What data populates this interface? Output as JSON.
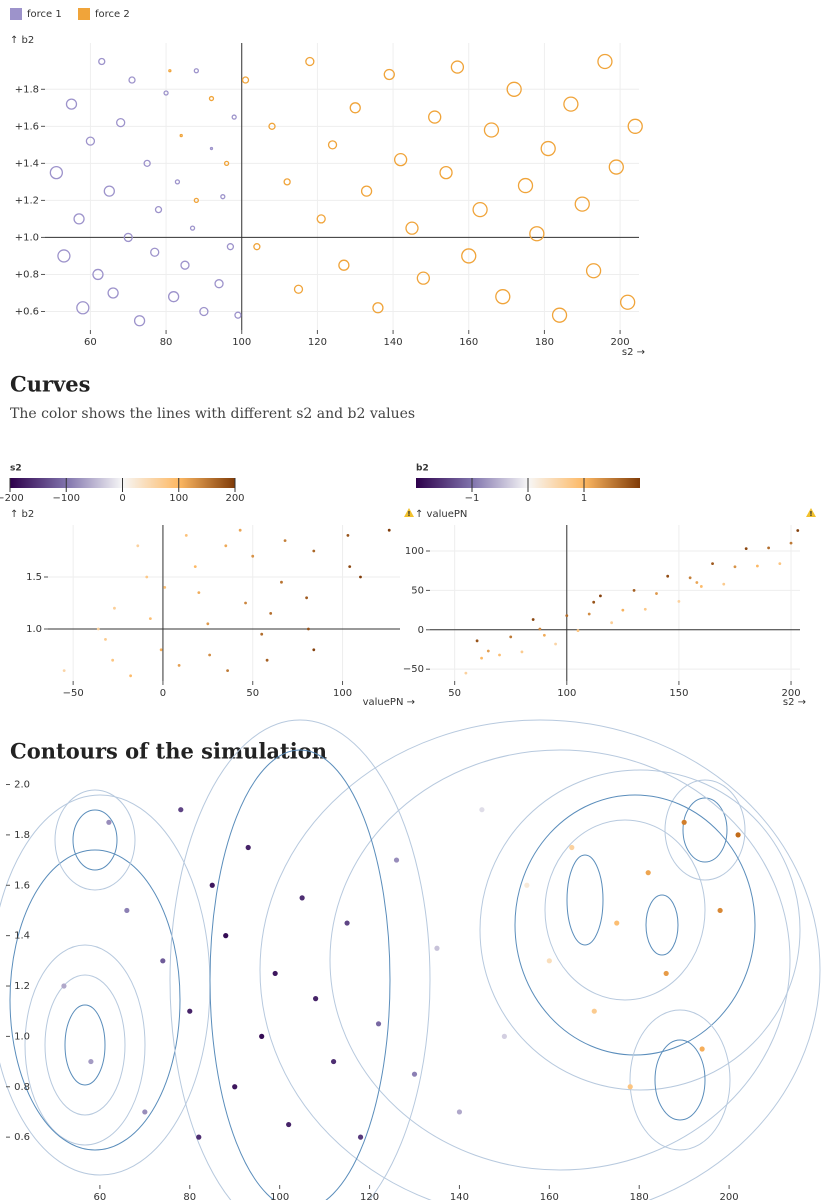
{
  "sections": [
    {
      "title": "Curves",
      "subtitle": "The color shows the lines with different s2 and b2 values"
    },
    {
      "title": "Contours of the simulation"
    }
  ],
  "chart_data": [
    {
      "type": "scatter",
      "x_label": "s2 →",
      "y_label": "↑ b2",
      "hollow": true,
      "grid": true,
      "xlim": [
        48,
        205
      ],
      "ylim": [
        0.5,
        2.05
      ],
      "xticks": [
        60,
        80,
        100,
        120,
        140,
        160,
        180,
        200
      ],
      "yticks": [
        {
          "value": 0.6,
          "label": "+0.6"
        },
        {
          "value": 0.8,
          "label": "+0.8"
        },
        {
          "value": 1,
          "label": "+1.0"
        },
        {
          "value": 1.2,
          "label": "+1.2"
        },
        {
          "value": 1.4,
          "label": "+1.4"
        },
        {
          "value": 1.6,
          "label": "+1.6"
        },
        {
          "value": 1.8,
          "label": "+1.8"
        }
      ],
      "rules": {
        "x": 100,
        "y": 1
      },
      "series": [
        {
          "name": "force 1",
          "color": "#9d93cb",
          "x": [
            51,
            53,
            55,
            57,
            58,
            60,
            62,
            63,
            65,
            66,
            68,
            70,
            71,
            73,
            75,
            77,
            78,
            80,
            82,
            83,
            85,
            87,
            88,
            90,
            92,
            94,
            95,
            97,
            98,
            99
          ],
          "values": [
            1.35,
            0.9,
            1.72,
            1.1,
            0.62,
            1.52,
            0.8,
            1.95,
            1.25,
            0.7,
            1.62,
            1.0,
            1.85,
            0.55,
            1.4,
            0.92,
            1.15,
            1.78,
            0.68,
            1.3,
            0.85,
            1.05,
            1.9,
            0.6,
            1.48,
            0.75,
            1.22,
            0.95,
            1.65,
            0.58
          ],
          "sizes": [
            6,
            6,
            5,
            5,
            6,
            4,
            5,
            3,
            5,
            5,
            4,
            4,
            3,
            5,
            3,
            4,
            3,
            2,
            5,
            2,
            4,
            2,
            2,
            4,
            1,
            4,
            2,
            3,
            2,
            3
          ]
        },
        {
          "name": "force 2",
          "color": "#f0a43a",
          "x": [
            81,
            84,
            88,
            92,
            96,
            101,
            104,
            108,
            112,
            115,
            118,
            121,
            124,
            127,
            130,
            133,
            136,
            139,
            142,
            145,
            148,
            151,
            154,
            157,
            160,
            163,
            166,
            169,
            172,
            175,
            178,
            181,
            184,
            187,
            190,
            193,
            196,
            199,
            202,
            204
          ],
          "values": [
            1.9,
            1.55,
            1.2,
            1.75,
            1.4,
            1.85,
            0.95,
            1.6,
            1.3,
            0.72,
            1.95,
            1.1,
            1.5,
            0.85,
            1.7,
            1.25,
            0.62,
            1.88,
            1.42,
            1.05,
            0.78,
            1.65,
            1.35,
            1.92,
            0.9,
            1.15,
            1.58,
            0.68,
            1.8,
            1.28,
            1.02,
            1.48,
            0.58,
            1.72,
            1.18,
            0.82,
            1.95,
            1.38,
            0.65,
            1.6
          ],
          "sizes": [
            1,
            1,
            2,
            2,
            2,
            3,
            3,
            3,
            3,
            4,
            4,
            4,
            4,
            5,
            5,
            5,
            5,
            5,
            6,
            6,
            6,
            6,
            6,
            6,
            7,
            7,
            7,
            7,
            7,
            7,
            7,
            7,
            7,
            7,
            7,
            7,
            7,
            7,
            7,
            7
          ]
        }
      ]
    },
    {
      "type": "scatter",
      "x_label": "valuePN →",
      "y_label": "↑ b2",
      "grid": true,
      "xlim": [
        -64,
        132
      ],
      "ylim": [
        0.5,
        2.0
      ],
      "xticks": [
        {
          "value": -50,
          "label": "−50"
        },
        0,
        50,
        100
      ],
      "yticks": [
        {
          "value": 1,
          "label": "1.0"
        },
        1.5
      ],
      "rules": {
        "x": 0,
        "y": 1
      },
      "color_scale": {
        "title": "s2",
        "domain": [
          -200,
          200
        ],
        "colors": [
          "#2d004b",
          "#8073ac",
          "#f7f7f7",
          "#fdb863",
          "#7f3b08"
        ],
        "ticks": [
          {
            "value": -200,
            "label": "−200"
          },
          {
            "value": -100,
            "label": "−100"
          },
          0,
          100,
          200
        ]
      },
      "x": [
        -55,
        -14,
        -27,
        -32,
        -9,
        -28,
        13,
        -7,
        -18,
        18,
        -1,
        20,
        43,
        9,
        25,
        50,
        26,
        46,
        68,
        36,
        66,
        55,
        84,
        58,
        80,
        103,
        81,
        104,
        84,
        110,
        126,
        -36,
        1,
        35,
        60
      ],
      "values": [
        0.6,
        1.8,
        1.2,
        0.9,
        1.5,
        0.7,
        1.9,
        1.1,
        0.55,
        1.6,
        0.8,
        1.35,
        1.95,
        0.65,
        1.05,
        1.7,
        0.75,
        1.25,
        1.85,
        0.6,
        1.45,
        0.95,
        1.75,
        0.7,
        1.3,
        1.9,
        1.0,
        1.6,
        0.8,
        1.5,
        1.95,
        1.0,
        1.4,
        1.8,
        1.15
      ],
      "color_values": [
        55,
        60,
        65,
        70,
        75,
        80,
        85,
        90,
        95,
        100,
        105,
        110,
        115,
        120,
        125,
        130,
        135,
        140,
        145,
        150,
        155,
        160,
        165,
        170,
        175,
        180,
        185,
        190,
        195,
        200,
        203,
        62,
        88,
        112,
        158
      ]
    },
    {
      "type": "scatter",
      "x_label": "s2 →",
      "y_label": "↑ valuePN",
      "grid": true,
      "xlim": [
        39,
        204
      ],
      "ylim": [
        -65,
        133
      ],
      "xticks": [
        50,
        100,
        150,
        200
      ],
      "yticks": [
        {
          "value": -50,
          "label": "−50"
        },
        0,
        50,
        100
      ],
      "rules": {
        "x": 100,
        "y": 0
      },
      "color_scale": {
        "title": "b2",
        "domain": [
          -2,
          2
        ],
        "colors": [
          "#2d004b",
          "#8073ac",
          "#f7f7f7",
          "#fdb863",
          "#7f3b08"
        ],
        "ticks": [
          {
            "value": -1,
            "label": "−1"
          },
          0,
          1
        ]
      },
      "x": [
        55,
        60,
        65,
        70,
        75,
        80,
        85,
        90,
        95,
        100,
        105,
        110,
        115,
        120,
        125,
        130,
        135,
        140,
        145,
        150,
        155,
        160,
        165,
        170,
        175,
        180,
        185,
        190,
        195,
        200,
        203,
        62,
        88,
        112,
        158
      ],
      "values": [
        -55,
        -14,
        -27,
        -32,
        -9,
        -28,
        13,
        -7,
        -18,
        18,
        -1,
        20,
        43,
        9,
        25,
        50,
        26,
        46,
        68,
        36,
        66,
        55,
        84,
        58,
        80,
        103,
        81,
        104,
        84,
        110,
        126,
        -36,
        1,
        35,
        60
      ],
      "color_values": [
        0.6,
        1.8,
        1.2,
        0.9,
        1.5,
        0.7,
        1.9,
        1.1,
        0.55,
        1.6,
        0.8,
        1.35,
        1.95,
        0.65,
        1.05,
        1.7,
        0.75,
        1.25,
        1.85,
        0.6,
        1.45,
        0.95,
        1.75,
        0.7,
        1.3,
        1.9,
        1.0,
        1.6,
        0.8,
        1.5,
        1.95,
        1.0,
        1.4,
        1.8,
        1.15
      ]
    },
    {
      "type": "scatter",
      "grid": false,
      "xlim": [
        40,
        218
      ],
      "ylim": [
        0.41,
        2.01
      ],
      "xticks": [
        60,
        80,
        100,
        120,
        140,
        160,
        180,
        200
      ],
      "yticks": [
        0.6,
        0.8,
        {
          "value": 1,
          "label": "1.0"
        },
        1.2,
        1.4,
        1.6,
        1.8,
        {
          "value": 2,
          "label": "2.0"
        }
      ],
      "color_scale": {
        "domain": [
          -100,
          100
        ],
        "colors": [
          "#2d004b",
          "#8073ac",
          "#f7f7f7",
          "#fdb863",
          "#b35806"
        ]
      },
      "x": [
        52,
        58,
        62,
        66,
        70,
        74,
        78,
        80,
        82,
        85,
        88,
        90,
        93,
        96,
        99,
        102,
        105,
        108,
        112,
        115,
        118,
        122,
        126,
        130,
        135,
        140,
        145,
        150,
        155,
        160,
        165,
        170,
        175,
        178,
        182,
        186,
        190,
        194,
        198,
        202
      ],
      "values": [
        1.2,
        0.9,
        1.85,
        1.5,
        0.7,
        1.3,
        1.9,
        1.1,
        0.6,
        1.6,
        1.4,
        0.8,
        1.75,
        1.0,
        1.25,
        0.65,
        1.55,
        1.15,
        0.9,
        1.45,
        0.6,
        1.05,
        1.7,
        0.85,
        1.35,
        0.7,
        1.9,
        1.0,
        1.6,
        1.3,
        1.75,
        1.1,
        1.45,
        0.8,
        1.65,
        1.25,
        1.85,
        0.95,
        1.5,
        1.8
      ],
      "color_values": [
        -30,
        -35,
        -40,
        -45,
        -40,
        -60,
        -70,
        -85,
        -80,
        -90,
        -95,
        -90,
        -85,
        -95,
        -90,
        -85,
        -80,
        -85,
        -80,
        -70,
        -75,
        -55,
        -40,
        -45,
        -20,
        -30,
        -10,
        -15,
        10,
        20,
        30,
        35,
        45,
        40,
        60,
        65,
        80,
        55,
        75,
        90
      ]
    }
  ]
}
